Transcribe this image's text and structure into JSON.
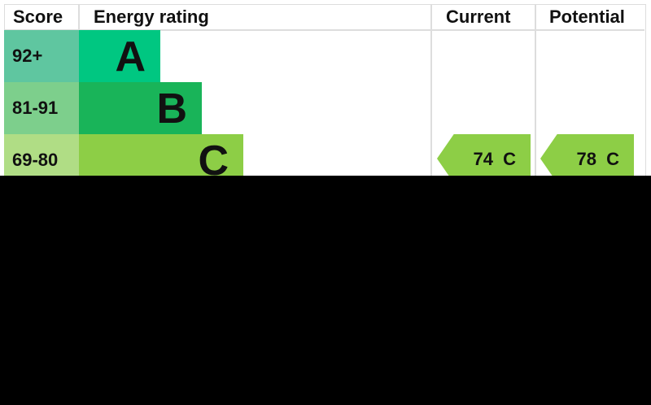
{
  "headers": {
    "score": "Score",
    "rating": "Energy rating",
    "current": "Current",
    "potential": "Potential"
  },
  "bands": [
    {
      "score": "92+",
      "letter": "A",
      "score_color": "#5fc6a0",
      "bar_color": "#00c781"
    },
    {
      "score": "81-91",
      "letter": "B",
      "score_color": "#7dcf8c",
      "bar_color": "#19b459"
    },
    {
      "score": "69-80",
      "letter": "C",
      "score_color": "#b0dd85",
      "bar_color": "#8dce46"
    }
  ],
  "current": {
    "label": "74 C",
    "color": "#8dce46"
  },
  "potential": {
    "label": "78 C",
    "color": "#8dce46"
  }
}
